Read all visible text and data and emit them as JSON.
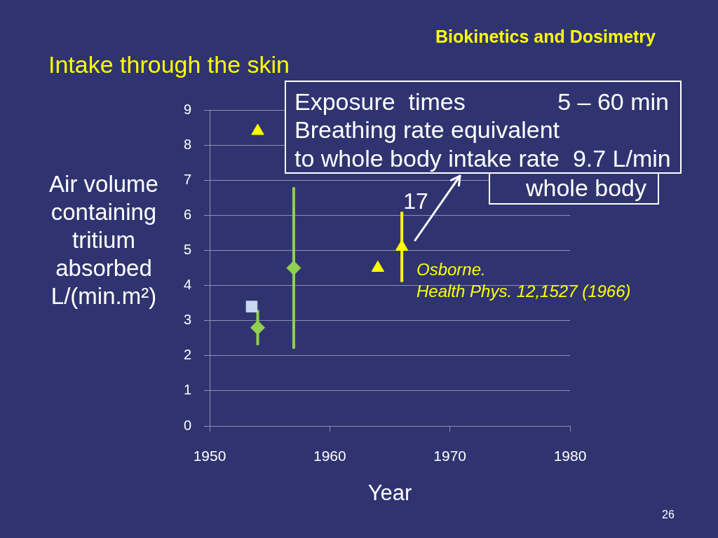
{
  "chart_data": {
    "type": "scatter",
    "title": "Intake through the skin",
    "xlabel": "Year",
    "ylabel": "Air volume containing tritium absorbed L/(min.m²)",
    "xlim": [
      1950,
      1980
    ],
    "xticks": [
      1950,
      1960,
      1970,
      1980
    ],
    "ylim": [
      0,
      9
    ],
    "yticks": [
      0,
      1,
      2,
      3,
      4,
      5,
      6,
      7,
      8,
      9
    ],
    "grid": "y",
    "series": [
      {
        "color": "#c6d9f1",
        "marker": "square",
        "x": [
          1953.5
        ],
        "values": [
          3.4
        ]
      },
      {
        "color": "#92d050",
        "marker": "diamond",
        "x": [
          1954,
          1957
        ],
        "values": [
          2.8,
          4.5
        ],
        "errors": [
          [
            2.3,
            3.3
          ],
          [
            2.2,
            6.8
          ]
        ]
      },
      {
        "color": "#ffff00",
        "marker": "triangle",
        "x": [
          1954,
          1964,
          1966
        ],
        "values": [
          8.4,
          4.5,
          5.1
        ],
        "errors": [
          null,
          null,
          [
            4.1,
            6.1
          ]
        ]
      }
    ],
    "annotations": [
      "Biokinetics and Dosimetry",
      "Exposure  times",
      "5 – 60 min",
      "Breathing rate equivalent",
      "to whole body intake rate  9.7 L/min",
      "whole body",
      "17",
      "Osborne.",
      "Health Phys. 12,1527 (1966)",
      "26"
    ]
  }
}
